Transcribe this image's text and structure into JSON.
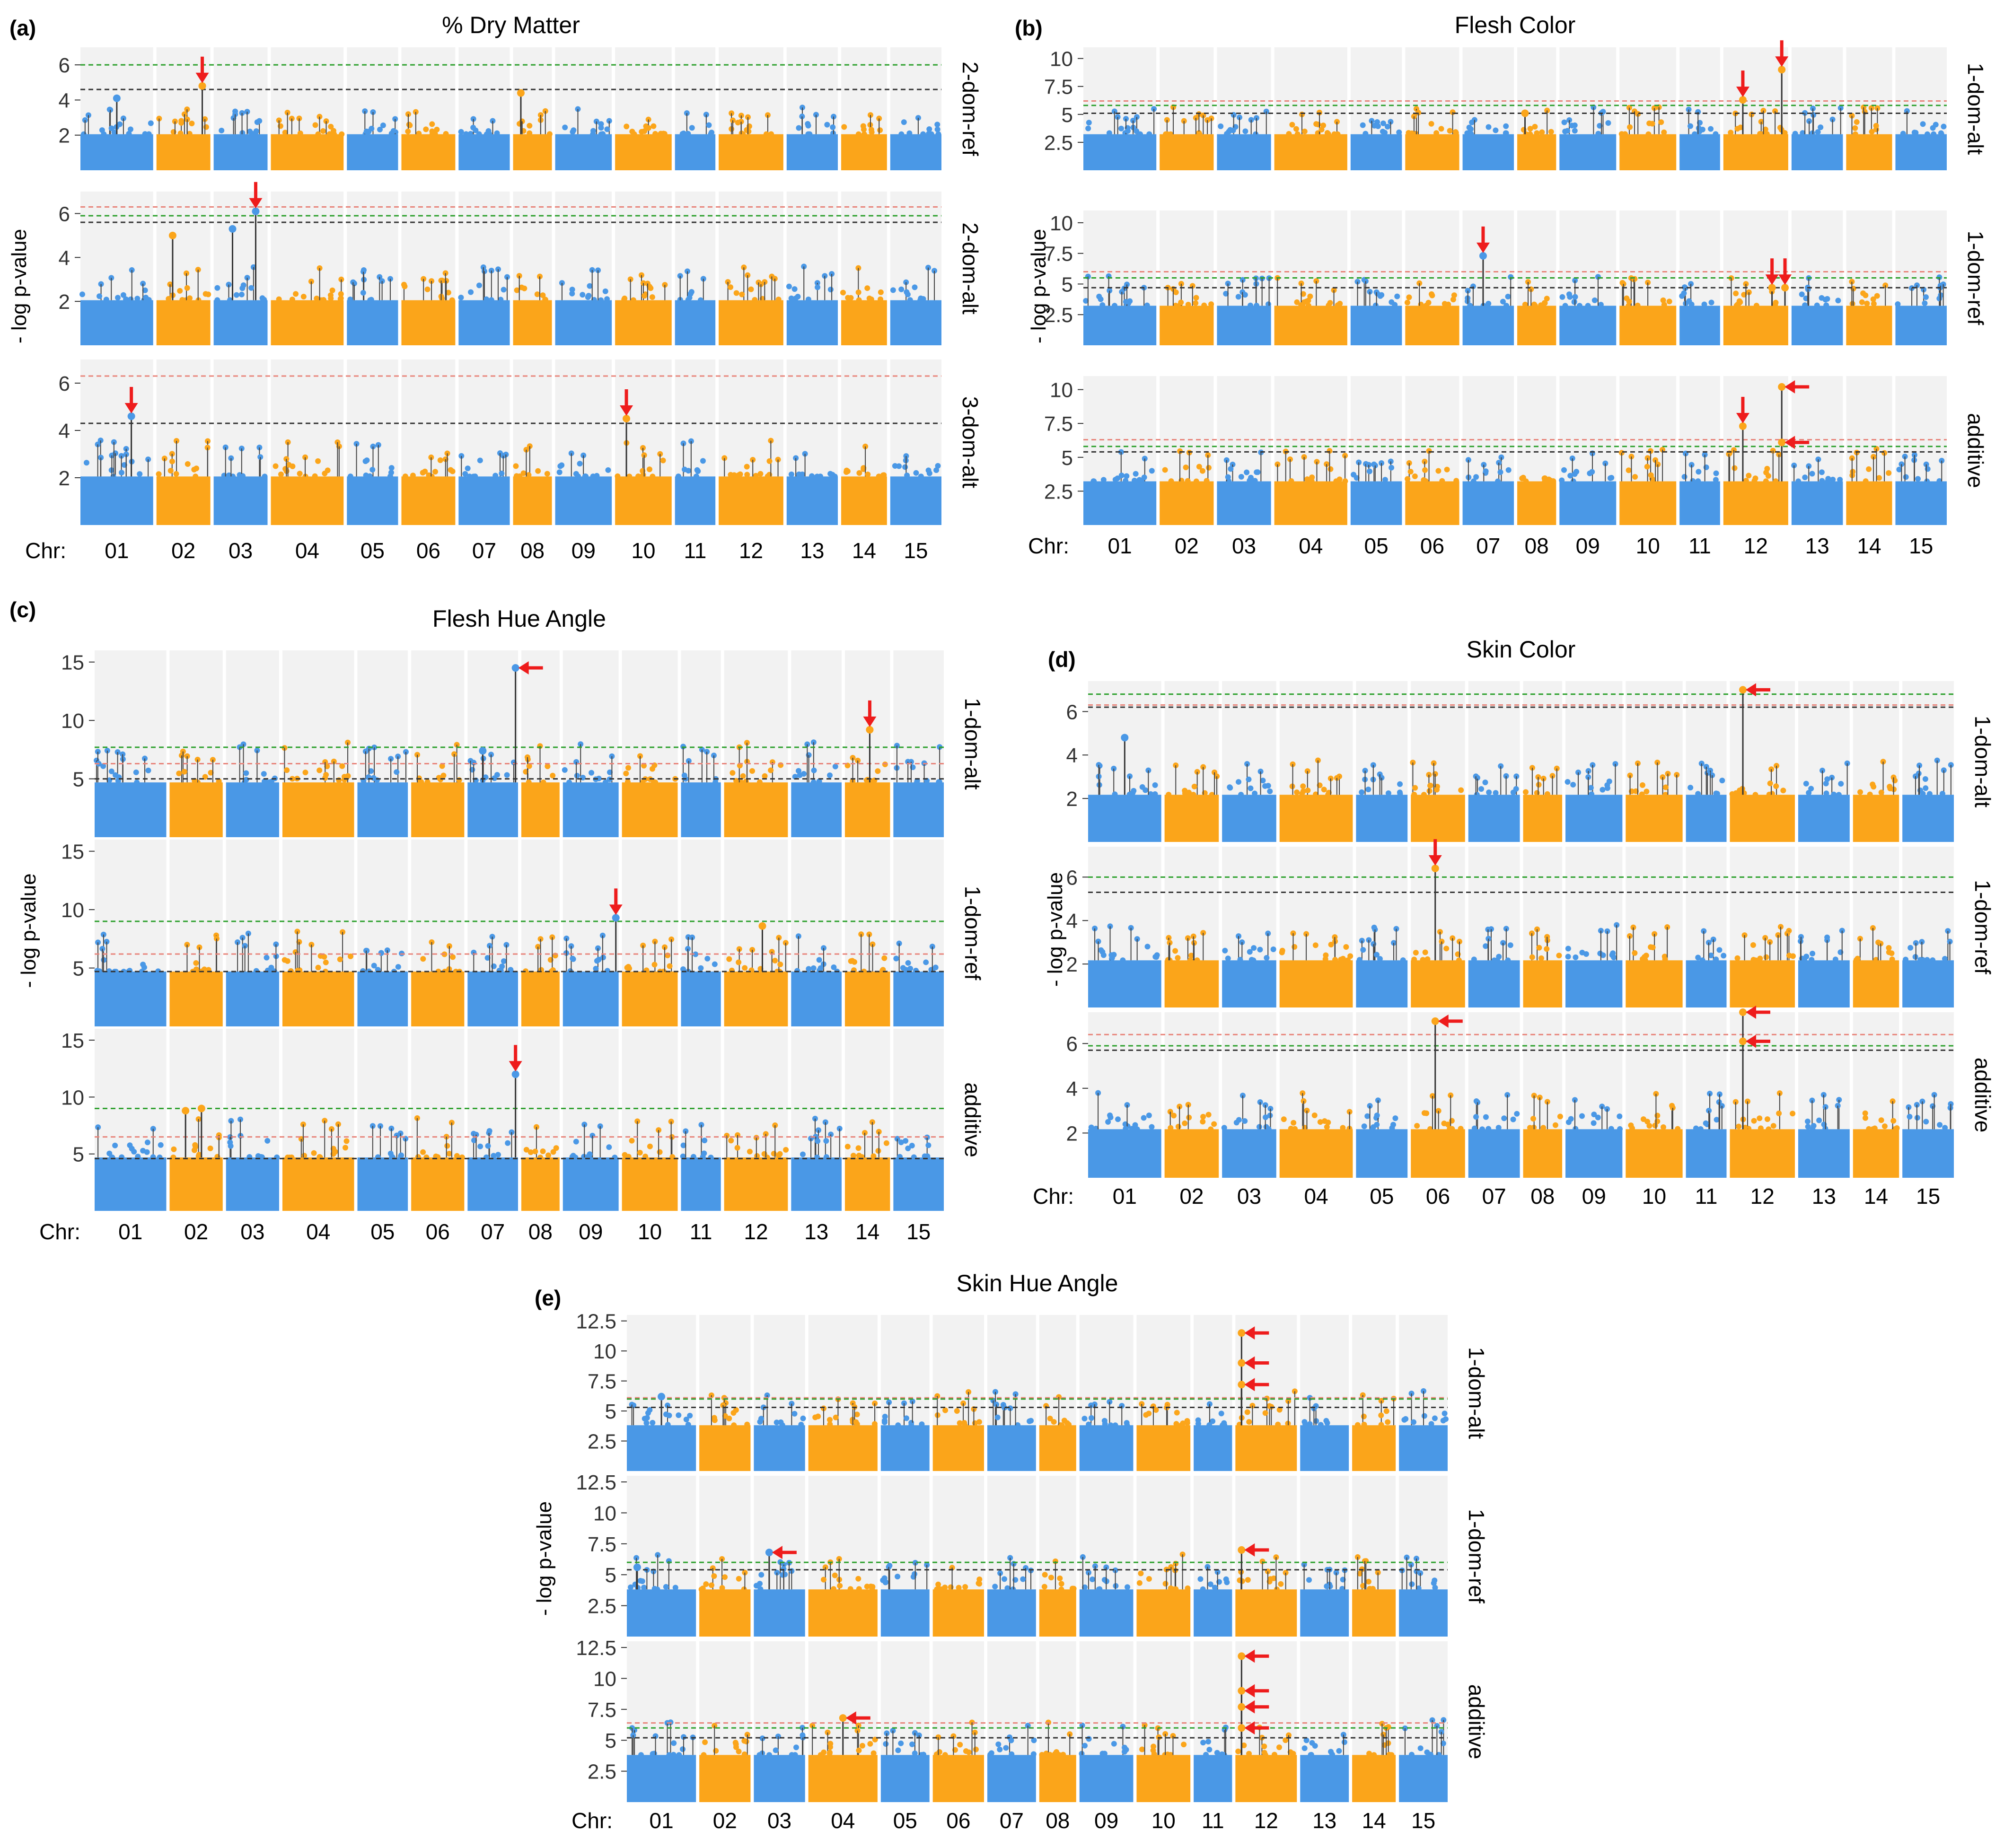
{
  "figure": {
    "chromosome_axis_label": "Chr:",
    "chromosomes": [
      "01",
      "02",
      "03",
      "04",
      "05",
      "06",
      "07",
      "08",
      "09",
      "10",
      "11",
      "12",
      "13",
      "14",
      "15"
    ],
    "y_axis_label": "- log p-value",
    "colors": {
      "odd_chromosome": "#4a98e6",
      "even_chromosome": "#fba51a",
      "panel_background": "#f2f2f2",
      "threshold_green": "#2ca02c",
      "threshold_red": "#e8847a",
      "threshold_black": "#333333",
      "arrow": "#ee1c1c"
    }
  },
  "chart_data": [
    {
      "type": "scatter",
      "panel_label": "(a)",
      "title": "% Dry Matter",
      "ylabel": "- log p-value",
      "xlabel": "Chr:",
      "grid": true,
      "facets": [
        {
          "name": "2-dom-ref",
          "ylim": [
            0,
            7
          ],
          "yticks": [
            2,
            4,
            6
          ],
          "thresholds": {
            "green": 6.0,
            "black": 4.6
          },
          "peaks": [
            {
              "chr": 2,
              "pos": 0.85,
              "value": 4.8,
              "arrow": "down"
            },
            {
              "chr": 8,
              "pos": 0.2,
              "value": 4.4
            },
            {
              "chr": 1,
              "pos": 0.5,
              "value": 4.1
            }
          ]
        },
        {
          "name": "2-dom-alt",
          "ylim": [
            0,
            7
          ],
          "yticks": [
            2,
            4,
            6
          ],
          "thresholds": {
            "red": 6.3,
            "green": 5.9,
            "black": 5.6
          },
          "peaks": [
            {
              "chr": 3,
              "pos": 0.78,
              "value": 6.1,
              "arrow": "down"
            },
            {
              "chr": 3,
              "pos": 0.35,
              "value": 5.3
            },
            {
              "chr": 2,
              "pos": 0.3,
              "value": 5.0
            }
          ]
        },
        {
          "name": "3-dom-alt",
          "ylim": [
            0,
            7
          ],
          "yticks": [
            2,
            4,
            6
          ],
          "thresholds": {
            "red": 6.3,
            "black": 4.3
          },
          "peaks": [
            {
              "chr": 1,
              "pos": 0.7,
              "value": 4.6,
              "arrow": "down"
            },
            {
              "chr": 10,
              "pos": 0.2,
              "value": 4.5,
              "arrow": "down"
            }
          ]
        }
      ]
    },
    {
      "type": "scatter",
      "panel_label": "(b)",
      "title": "Flesh Color",
      "ylabel": "- log p-value",
      "xlabel": "Chr:",
      "grid": true,
      "facets": [
        {
          "name": "1-dom-alt",
          "ylim": [
            0,
            11
          ],
          "yticks": [
            2.5,
            5,
            7.5,
            10
          ],
          "thresholds": {
            "red": 6.2,
            "green": 5.8,
            "black": 5.1
          },
          "peaks": [
            {
              "chr": 12,
              "pos": 0.3,
              "value": 6.3,
              "arrow": "down"
            },
            {
              "chr": 12,
              "pos": 0.9,
              "value": 9.0,
              "arrow": "down"
            },
            {
              "chr": 8,
              "pos": 0.2,
              "value": 5.1
            }
          ]
        },
        {
          "name": "1-dom-ref",
          "ylim": [
            0,
            11
          ],
          "yticks": [
            2.5,
            5,
            7.5,
            10
          ],
          "thresholds": {
            "red": 6.0,
            "green": 5.5,
            "black": 4.7
          },
          "peaks": [
            {
              "chr": 7,
              "pos": 0.4,
              "value": 7.3,
              "arrow": "down"
            },
            {
              "chr": 12,
              "pos": 0.75,
              "value": 4.7,
              "arrow": "down"
            },
            {
              "chr": 12,
              "pos": 0.95,
              "value": 4.7,
              "arrow": "down"
            }
          ]
        },
        {
          "name": "additive",
          "ylim": [
            0,
            11
          ],
          "yticks": [
            2.5,
            5,
            7.5,
            10
          ],
          "thresholds": {
            "red": 6.3,
            "green": 5.8,
            "black": 5.4
          },
          "peaks": [
            {
              "chr": 12,
              "pos": 0.3,
              "value": 7.3,
              "arrow": "down"
            },
            {
              "chr": 12,
              "pos": 0.9,
              "value": 10.2,
              "arrow": "right"
            },
            {
              "chr": 12,
              "pos": 0.9,
              "value": 6.1,
              "arrow": "right"
            }
          ]
        }
      ]
    },
    {
      "type": "scatter",
      "panel_label": "(c)",
      "title": "Flesh Hue Angle",
      "ylabel": "- log p-value",
      "xlabel": "Chr:",
      "grid": true,
      "facets": [
        {
          "name": "1-dom-alt",
          "ylim": [
            0,
            16
          ],
          "yticks": [
            5,
            10,
            15
          ],
          "thresholds": {
            "green": 7.7,
            "red": 6.3,
            "black": 5.0
          },
          "peaks": [
            {
              "chr": 7,
              "pos": 0.95,
              "value": 14.5,
              "arrow": "right"
            },
            {
              "chr": 14,
              "pos": 0.55,
              "value": 9.2,
              "arrow": "down"
            },
            {
              "chr": 7,
              "pos": 0.3,
              "value": 7.4
            }
          ]
        },
        {
          "name": "1-dom-ref",
          "ylim": [
            0,
            16
          ],
          "yticks": [
            5,
            10,
            15
          ],
          "thresholds": {
            "green": 9.0,
            "red": 6.2,
            "black": 4.7
          },
          "peaks": [
            {
              "chr": 9,
              "pos": 0.95,
              "value": 9.3,
              "arrow": "down"
            },
            {
              "chr": 12,
              "pos": 0.6,
              "value": 8.6
            }
          ]
        },
        {
          "name": "additive",
          "ylim": [
            0,
            16
          ],
          "yticks": [
            5,
            10,
            15
          ],
          "thresholds": {
            "green": 9.0,
            "red": 6.5,
            "black": 4.6
          },
          "peaks": [
            {
              "chr": 7,
              "pos": 0.95,
              "value": 12.0,
              "arrow": "down"
            },
            {
              "chr": 2,
              "pos": 0.3,
              "value": 8.8
            },
            {
              "chr": 2,
              "pos": 0.6,
              "value": 9.0
            }
          ]
        }
      ]
    },
    {
      "type": "scatter",
      "panel_label": "(d)",
      "title": "Skin Color",
      "ylabel": "- log p-value",
      "xlabel": "Chr:",
      "grid": true,
      "facets": [
        {
          "name": "1-dom-alt",
          "ylim": [
            0,
            7.4
          ],
          "yticks": [
            2,
            4,
            6
          ],
          "thresholds": {
            "green": 6.8,
            "red": 6.3,
            "black": 6.2
          },
          "peaks": [
            {
              "chr": 12,
              "pos": 0.2,
              "value": 7.0,
              "arrow": "right"
            },
            {
              "chr": 1,
              "pos": 0.5,
              "value": 4.8
            }
          ]
        },
        {
          "name": "1-dom-ref",
          "ylim": [
            0,
            7.4
          ],
          "yticks": [
            2,
            4,
            6
          ],
          "thresholds": {
            "green": 6.0,
            "black": 5.3
          },
          "peaks": [
            {
              "chr": 6,
              "pos": 0.45,
              "value": 6.4,
              "arrow": "down"
            }
          ]
        },
        {
          "name": "additive",
          "ylim": [
            0,
            7.4
          ],
          "yticks": [
            2,
            4,
            6
          ],
          "thresholds": {
            "red": 6.4,
            "green": 5.9,
            "black": 5.7
          },
          "peaks": [
            {
              "chr": 6,
              "pos": 0.45,
              "value": 7.0,
              "arrow": "right"
            },
            {
              "chr": 12,
              "pos": 0.2,
              "value": 7.4,
              "arrow": "right"
            },
            {
              "chr": 12,
              "pos": 0.2,
              "value": 6.1,
              "arrow": "right"
            }
          ]
        }
      ]
    },
    {
      "type": "scatter",
      "panel_label": "(e)",
      "title": "Skin Hue Angle",
      "ylabel": "- log p-value",
      "xlabel": "Chr:",
      "grid": true,
      "facets": [
        {
          "name": "1-dom-alt",
          "ylim": [
            0,
            13
          ],
          "yticks": [
            2.5,
            5,
            7.5,
            10,
            12.5
          ],
          "thresholds": {
            "red": 6.1,
            "green": 6.0,
            "black": 5.3
          },
          "peaks": [
            {
              "chr": 12,
              "pos": 0.1,
              "value": 11.5,
              "arrow": "right"
            },
            {
              "chr": 12,
              "pos": 0.1,
              "value": 9.0,
              "arrow": "right"
            },
            {
              "chr": 12,
              "pos": 0.1,
              "value": 7.2,
              "arrow": "right"
            },
            {
              "chr": 1,
              "pos": 0.5,
              "value": 6.2
            }
          ]
        },
        {
          "name": "1-dom-ref",
          "ylim": [
            0,
            13
          ],
          "yticks": [
            2.5,
            5,
            7.5,
            10,
            12.5
          ],
          "thresholds": {
            "green": 6.0,
            "black": 5.4
          },
          "peaks": [
            {
              "chr": 3,
              "pos": 0.3,
              "value": 6.8,
              "arrow": "right"
            },
            {
              "chr": 12,
              "pos": 0.1,
              "value": 7.0,
              "arrow": "right"
            },
            {
              "chr": 1,
              "pos": 0.15,
              "value": 5.6
            }
          ]
        },
        {
          "name": "additive",
          "ylim": [
            0,
            13
          ],
          "yticks": [
            2.5,
            5,
            7.5,
            10,
            12.5
          ],
          "thresholds": {
            "red": 6.4,
            "green": 6.0,
            "black": 5.2
          },
          "peaks": [
            {
              "chr": 4,
              "pos": 0.5,
              "value": 6.8,
              "arrow": "right"
            },
            {
              "chr": 12,
              "pos": 0.1,
              "value": 11.8,
              "arrow": "right"
            },
            {
              "chr": 12,
              "pos": 0.1,
              "value": 9.0,
              "arrow": "right"
            },
            {
              "chr": 12,
              "pos": 0.1,
              "value": 7.7,
              "arrow": "right"
            },
            {
              "chr": 12,
              "pos": 0.1,
              "value": 6.0,
              "arrow": "right"
            }
          ]
        }
      ]
    }
  ]
}
